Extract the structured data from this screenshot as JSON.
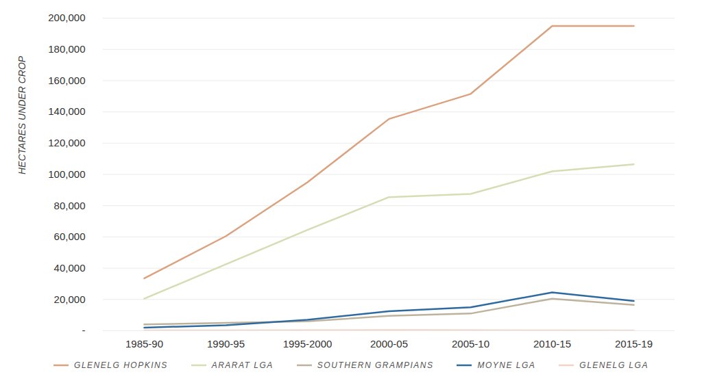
{
  "chart_data": {
    "type": "line",
    "y_label": "HECTARES UNDER CROP",
    "x": [
      "1985-90",
      "1990-95",
      "1995-2000",
      "2000-05",
      "2005-10",
      "2010-15",
      "2015-19"
    ],
    "series": [
      {
        "name": "GLENELG HOPKINS",
        "color": "#dba27f",
        "values": [
          33500,
          60500,
          95000,
          135500,
          151500,
          195000,
          195000
        ]
      },
      {
        "name": "ARARAT LGA",
        "color": "#d6ddb3",
        "values": [
          20500,
          42500,
          64500,
          85500,
          87500,
          102000,
          106500
        ]
      },
      {
        "name": "SOUTHERN GRAMPIANS",
        "color": "#bdb39c",
        "values": [
          4000,
          5000,
          6000,
          9500,
          11000,
          20500,
          16500
        ]
      },
      {
        "name": "MOYNE LGA",
        "color": "#2f6a9e",
        "values": [
          2000,
          3500,
          7000,
          12500,
          15000,
          24500,
          19000
        ]
      },
      {
        "name": "GLENELG LGA",
        "color": "#f2d3c4",
        "values": [
          200,
          200,
          300,
          400,
          300,
          200,
          100
        ]
      }
    ],
    "ylim": [
      0,
      200000
    ],
    "yticks": [
      {
        "value": 0,
        "label": "-"
      },
      {
        "value": 20000,
        "label": "20,000"
      },
      {
        "value": 40000,
        "label": "40,000"
      },
      {
        "value": 60000,
        "label": "60,000"
      },
      {
        "value": 80000,
        "label": "80,000"
      },
      {
        "value": 100000,
        "label": "100,000"
      },
      {
        "value": 120000,
        "label": "120,000"
      },
      {
        "value": 140000,
        "label": "140,000"
      },
      {
        "value": 160000,
        "label": "160,000"
      },
      {
        "value": 180000,
        "label": "180,000"
      },
      {
        "value": 200000,
        "label": "200,000"
      }
    ],
    "grid": true,
    "legend": "bottom"
  }
}
